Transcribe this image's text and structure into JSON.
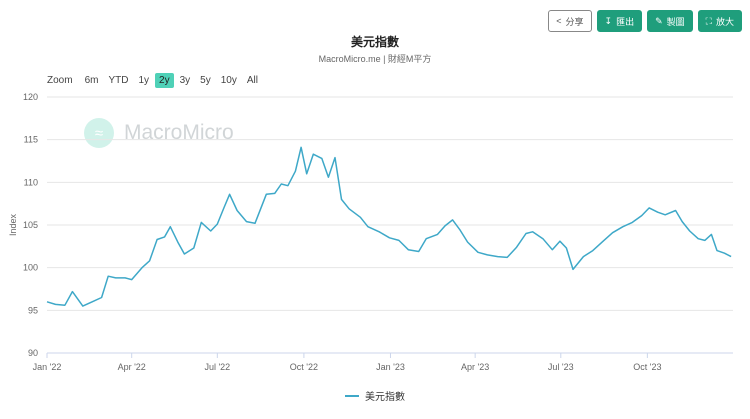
{
  "toolbar": {
    "share_label": "分享",
    "export_label": "匯出",
    "edit_label": "製圖",
    "expand_label": "放大",
    "accent_color": "#1f9e7c"
  },
  "header": {
    "title": "美元指數",
    "subtitle": "MacroMicro.me | 財經M平方"
  },
  "zoom": {
    "label": "Zoom",
    "options": [
      "6m",
      "YTD",
      "1y",
      "2y",
      "3y",
      "5y",
      "10y",
      "All"
    ],
    "selected": "2y"
  },
  "watermark": {
    "text": "MacroMicro"
  },
  "chart_data": {
    "type": "line",
    "ylabel": "Index",
    "ylim": [
      90,
      120
    ],
    "yticks": [
      90,
      95,
      100,
      105,
      110,
      115,
      120
    ],
    "xlim": [
      "2022-01-01",
      "2023-12-31"
    ],
    "xticks": [
      {
        "date": "2022-01-01",
        "label": "Jan '22"
      },
      {
        "date": "2022-04-01",
        "label": "Apr '22"
      },
      {
        "date": "2022-07-01",
        "label": "Jul '22"
      },
      {
        "date": "2022-10-01",
        "label": "Oct '22"
      },
      {
        "date": "2023-01-01",
        "label": "Jan '23"
      },
      {
        "date": "2023-04-01",
        "label": "Apr '23"
      },
      {
        "date": "2023-07-01",
        "label": "Jul '23"
      },
      {
        "date": "2023-10-01",
        "label": "Oct '23"
      }
    ],
    "grid": true,
    "legend_position": "bottom",
    "series": [
      {
        "name": "美元指數",
        "color": "#3ea8c8",
        "points": [
          [
            "2022-01-01",
            96.0
          ],
          [
            "2022-01-10",
            95.7
          ],
          [
            "2022-01-20",
            95.6
          ],
          [
            "2022-01-28",
            97.2
          ],
          [
            "2022-02-08",
            95.5
          ],
          [
            "2022-02-18",
            96.0
          ],
          [
            "2022-02-28",
            96.5
          ],
          [
            "2022-03-07",
            99.0
          ],
          [
            "2022-03-15",
            98.8
          ],
          [
            "2022-03-25",
            98.8
          ],
          [
            "2022-04-01",
            98.6
          ],
          [
            "2022-04-12",
            100.0
          ],
          [
            "2022-04-20",
            100.8
          ],
          [
            "2022-04-28",
            103.3
          ],
          [
            "2022-05-06",
            103.6
          ],
          [
            "2022-05-12",
            104.8
          ],
          [
            "2022-05-20",
            103.0
          ],
          [
            "2022-05-27",
            101.6
          ],
          [
            "2022-06-06",
            102.3
          ],
          [
            "2022-06-14",
            105.3
          ],
          [
            "2022-06-24",
            104.3
          ],
          [
            "2022-07-01",
            105.1
          ],
          [
            "2022-07-08",
            107.0
          ],
          [
            "2022-07-14",
            108.6
          ],
          [
            "2022-07-22",
            106.7
          ],
          [
            "2022-08-01",
            105.4
          ],
          [
            "2022-08-10",
            105.2
          ],
          [
            "2022-08-22",
            108.6
          ],
          [
            "2022-08-31",
            108.7
          ],
          [
            "2022-09-07",
            109.8
          ],
          [
            "2022-09-14",
            109.6
          ],
          [
            "2022-09-22",
            111.3
          ],
          [
            "2022-09-28",
            114.1
          ],
          [
            "2022-10-04",
            111.0
          ],
          [
            "2022-10-11",
            113.3
          ],
          [
            "2022-10-20",
            112.8
          ],
          [
            "2022-10-27",
            110.6
          ],
          [
            "2022-11-03",
            112.9
          ],
          [
            "2022-11-10",
            108.0
          ],
          [
            "2022-11-18",
            106.9
          ],
          [
            "2022-11-30",
            105.9
          ],
          [
            "2022-12-08",
            104.8
          ],
          [
            "2022-12-20",
            104.2
          ],
          [
            "2022-12-31",
            103.5
          ],
          [
            "2023-01-10",
            103.2
          ],
          [
            "2023-01-20",
            102.1
          ],
          [
            "2023-01-31",
            101.9
          ],
          [
            "2023-02-08",
            103.4
          ],
          [
            "2023-02-20",
            103.9
          ],
          [
            "2023-02-28",
            104.9
          ],
          [
            "2023-03-08",
            105.6
          ],
          [
            "2023-03-16",
            104.4
          ],
          [
            "2023-03-24",
            103.0
          ],
          [
            "2023-04-04",
            101.8
          ],
          [
            "2023-04-14",
            101.5
          ],
          [
            "2023-04-25",
            101.3
          ],
          [
            "2023-05-05",
            101.2
          ],
          [
            "2023-05-15",
            102.4
          ],
          [
            "2023-05-25",
            104.0
          ],
          [
            "2023-06-01",
            104.2
          ],
          [
            "2023-06-12",
            103.4
          ],
          [
            "2023-06-22",
            102.1
          ],
          [
            "2023-06-30",
            103.1
          ],
          [
            "2023-07-07",
            102.3
          ],
          [
            "2023-07-14",
            99.8
          ],
          [
            "2023-07-25",
            101.3
          ],
          [
            "2023-08-04",
            102.0
          ],
          [
            "2023-08-15",
            103.1
          ],
          [
            "2023-08-25",
            104.1
          ],
          [
            "2023-09-05",
            104.8
          ],
          [
            "2023-09-15",
            105.3
          ],
          [
            "2023-09-25",
            106.1
          ],
          [
            "2023-10-03",
            107.0
          ],
          [
            "2023-10-12",
            106.5
          ],
          [
            "2023-10-20",
            106.2
          ],
          [
            "2023-10-31",
            106.7
          ],
          [
            "2023-11-07",
            105.4
          ],
          [
            "2023-11-15",
            104.3
          ],
          [
            "2023-11-24",
            103.4
          ],
          [
            "2023-12-01",
            103.2
          ],
          [
            "2023-12-08",
            103.9
          ],
          [
            "2023-12-14",
            102.0
          ],
          [
            "2023-12-22",
            101.7
          ],
          [
            "2023-12-29",
            101.3
          ]
        ]
      }
    ]
  }
}
